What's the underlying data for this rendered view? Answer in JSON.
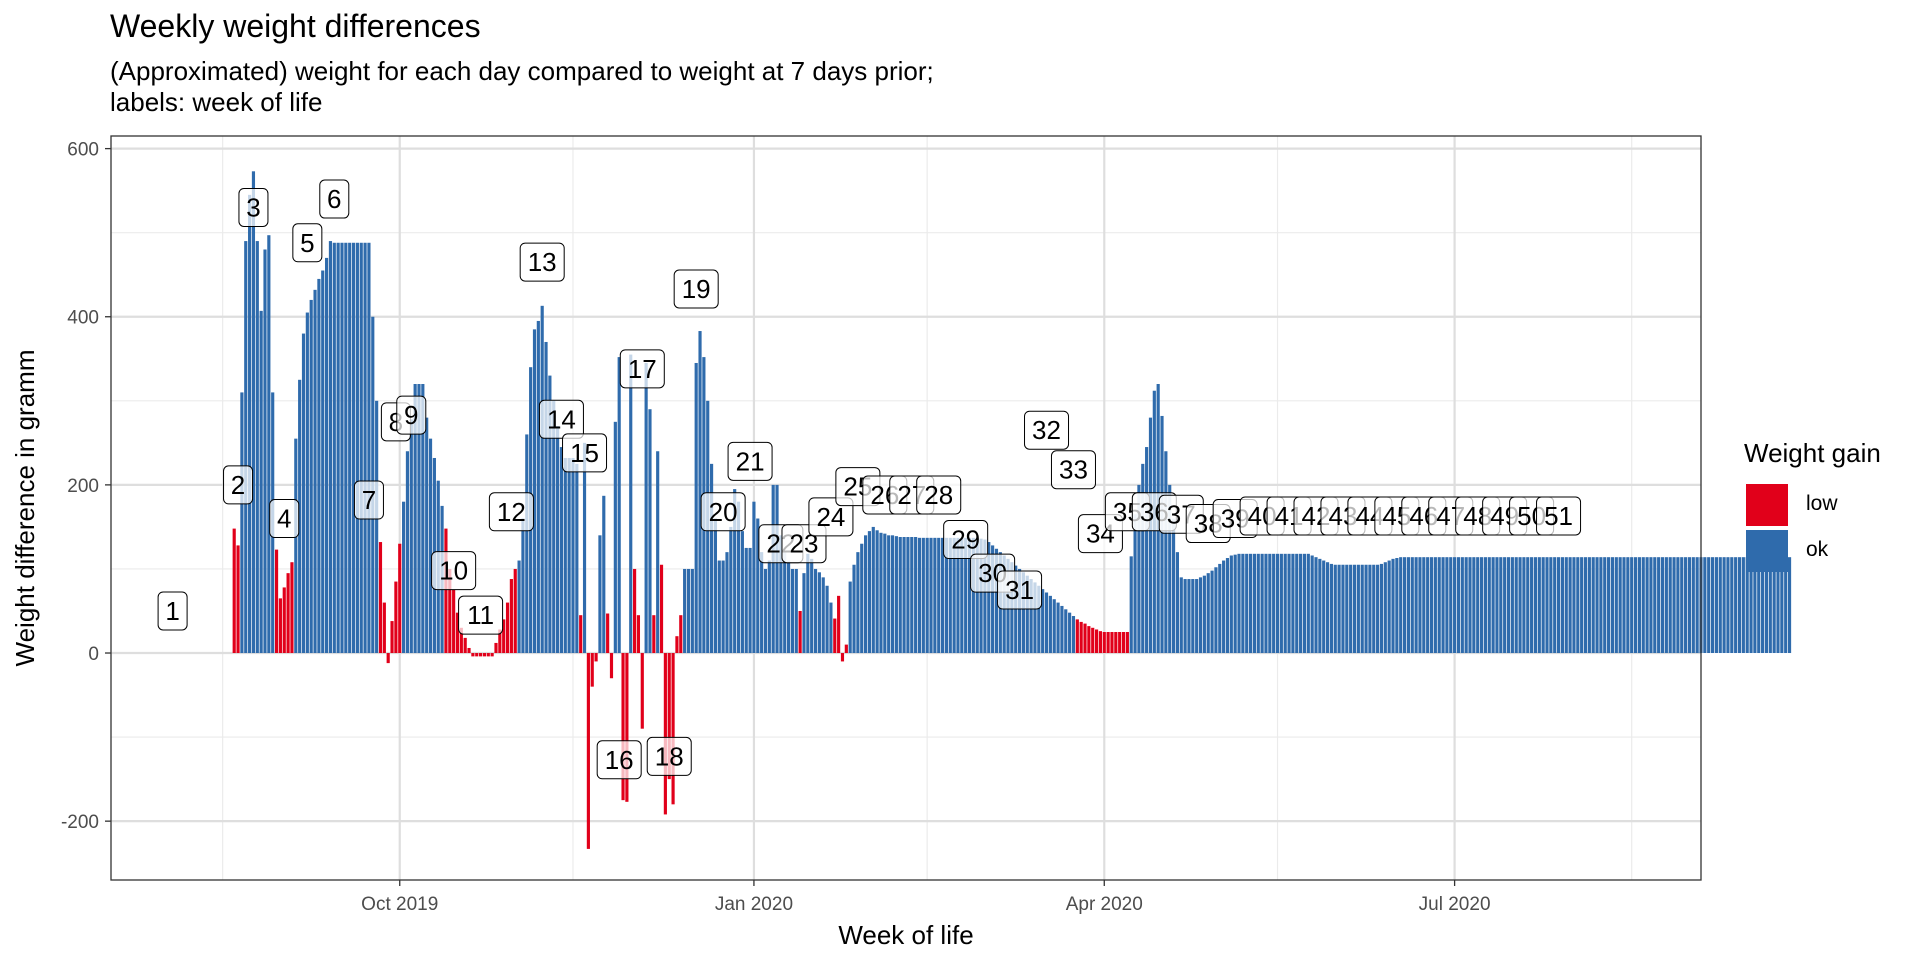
{
  "chart_data": {
    "type": "bar",
    "title": "Weekly weight differences",
    "subtitle": "(Approximated) weight for each day compared to weight at 7 days prior;\nlabels: week of life",
    "xlabel": "Week of life",
    "ylabel": "Weight difference in gramm",
    "x_ticks": [
      {
        "label": "Oct 2019",
        "date": "2019-10-01"
      },
      {
        "label": "Jan 2020",
        "date": "2020-01-01"
      },
      {
        "label": "Apr 2020",
        "date": "2020-04-01"
      },
      {
        "label": "Jul 2020",
        "date": "2020-07-01"
      }
    ],
    "x_minor_dates": [
      "2019-08-16",
      "2019-11-15",
      "2020-02-15",
      "2020-05-16",
      "2020-08-16"
    ],
    "xlim": [
      "2019-07-18",
      "2020-09-03"
    ],
    "y_ticks": [
      -200,
      0,
      200,
      400,
      600
    ],
    "ylim": [
      -270,
      615
    ],
    "grid": true,
    "legend": {
      "title": "Weight gain",
      "position": "right",
      "entries": [
        {
          "name": "low",
          "color": "#E1001A"
        },
        {
          "name": "ok",
          "color": "#2F6BAC"
        }
      ]
    },
    "series": [
      {
        "name": "low",
        "color": "#E1001A"
      },
      {
        "name": "ok",
        "color": "#2F6BAC"
      }
    ],
    "segments": [
      {
        "start": "2019-08-19",
        "values": [
          148,
          128
        ],
        "group": "low"
      },
      {
        "start": "2019-08-21",
        "values": [
          310,
          490,
          545,
          573,
          490,
          407,
          480,
          497,
          310
        ],
        "group": "ok"
      },
      {
        "start": "2019-08-30",
        "values": [
          123,
          65,
          78,
          95,
          108
        ],
        "group": "low"
      },
      {
        "start": "2019-09-04",
        "values": [
          255,
          325,
          380,
          405,
          420,
          432,
          445,
          455,
          470,
          490,
          488,
          488,
          488,
          488,
          488,
          488,
          488,
          488,
          488,
          488,
          400,
          300
        ],
        "group": "ok"
      },
      {
        "start": "2019-09-26",
        "values": [
          132,
          60,
          -12,
          38,
          85,
          130
        ],
        "group": "low"
      },
      {
        "start": "2019-10-02",
        "values": [
          180,
          240,
          278,
          320,
          320,
          320,
          280,
          255,
          232,
          205,
          175
        ],
        "group": "ok"
      },
      {
        "start": "2019-10-13",
        "values": [
          148,
          100,
          75,
          48,
          30,
          18,
          6,
          -4,
          -4,
          -4,
          -4,
          -4,
          -4,
          12,
          28,
          40,
          60,
          88,
          100
        ],
        "group": "low"
      },
      {
        "start": "2019-11-01",
        "values": [
          110,
          160,
          260,
          340,
          385,
          395,
          413,
          370,
          330,
          300,
          270,
          245,
          232,
          232,
          232,
          225
        ],
        "group": "ok"
      },
      {
        "start": "2019-11-17",
        "values": [
          45
        ],
        "group": "low"
      },
      {
        "start": "2019-11-18",
        "values": [
          250
        ],
        "group": "ok"
      },
      {
        "start": "2019-11-19",
        "values": [
          -233,
          -40,
          -10
        ],
        "group": "low"
      },
      {
        "start": "2019-11-22",
        "values": [
          140,
          187
        ],
        "group": "ok"
      },
      {
        "start": "2019-11-24",
        "values": [
          47,
          -30
        ],
        "group": "low"
      },
      {
        "start": "2019-11-26",
        "values": [
          275,
          352
        ],
        "group": "ok"
      },
      {
        "start": "2019-11-28",
        "values": [
          -175,
          -177
        ],
        "group": "low"
      },
      {
        "start": "2019-11-30",
        "values": [
          355
        ],
        "group": "ok"
      },
      {
        "start": "2019-12-01",
        "values": [
          100,
          45,
          -90
        ],
        "group": "low"
      },
      {
        "start": "2019-12-04",
        "values": [
          345,
          290
        ],
        "group": "ok"
      },
      {
        "start": "2019-12-06",
        "values": [
          45
        ],
        "group": "low"
      },
      {
        "start": "2019-12-07",
        "values": [
          240
        ],
        "group": "ok"
      },
      {
        "start": "2019-12-08",
        "values": [
          105,
          -192,
          -150,
          -180,
          20,
          45
        ],
        "group": "low"
      },
      {
        "start": "2019-12-14",
        "values": [
          100,
          100,
          100,
          345,
          383,
          352,
          300,
          225,
          160,
          110,
          110,
          120,
          150,
          195,
          180,
          145,
          125,
          125,
          180,
          160,
          120,
          100,
          110,
          200,
          200,
          140,
          120,
          110,
          100,
          100
        ],
        "group": "ok"
      },
      {
        "start": "2020-01-13",
        "values": [
          50
        ],
        "group": "low"
      },
      {
        "start": "2020-01-14",
        "values": [
          95,
          118,
          112,
          100,
          96,
          90,
          80,
          60
        ],
        "group": "ok"
      },
      {
        "start": "2020-01-22",
        "values": [
          41,
          68,
          -10,
          10
        ],
        "group": "low"
      },
      {
        "start": "2020-01-26",
        "values": [
          85,
          105,
          120,
          130,
          140,
          145,
          150,
          146,
          143,
          142,
          140,
          140,
          139,
          138,
          138,
          138,
          138,
          138,
          137,
          137,
          137,
          137,
          137,
          137,
          137,
          137,
          137,
          137,
          137,
          137,
          137,
          137,
          137,
          137,
          136,
          135,
          132,
          128,
          124,
          120,
          116,
          112,
          108,
          104,
          100,
          96,
          92,
          88,
          84,
          80,
          76,
          72,
          68,
          64,
          60,
          56,
          52,
          48,
          44
        ],
        "group": "ok"
      },
      {
        "start": "2020-03-25",
        "values": [
          40,
          37,
          35,
          32,
          30,
          28,
          26,
          25,
          25,
          25,
          25,
          25,
          25,
          25
        ],
        "group": "low"
      },
      {
        "start": "2020-04-08",
        "values": [
          115,
          165,
          200,
          225,
          245,
          280,
          312,
          320,
          282,
          240,
          200,
          160,
          120,
          90,
          88,
          88,
          88,
          88,
          90,
          92,
          95,
          98,
          102,
          106,
          110,
          113,
          116,
          117,
          118,
          118,
          118,
          118,
          118,
          118,
          118,
          118,
          118,
          118,
          118,
          118,
          118,
          118,
          118,
          118,
          118,
          118,
          118,
          116,
          114,
          112,
          110,
          108,
          106,
          105,
          105,
          105,
          105,
          105,
          105,
          105,
          105,
          105,
          105,
          105,
          105,
          106,
          108,
          110,
          112,
          113,
          114,
          114,
          114,
          114,
          114,
          114,
          114,
          114,
          114,
          114,
          114,
          114,
          114,
          114,
          114,
          114,
          114,
          114,
          114,
          114,
          114,
          114,
          114,
          114,
          114,
          114,
          114,
          114,
          114,
          114,
          114,
          114,
          114,
          114,
          114,
          114,
          114,
          114,
          114,
          114,
          114,
          114,
          114,
          114,
          114,
          114,
          114,
          114,
          114,
          114,
          114,
          114,
          114,
          114,
          114,
          114,
          114,
          114,
          114,
          114,
          114,
          114,
          114,
          114,
          114,
          114,
          114,
          114,
          114,
          114,
          114,
          114,
          114,
          114,
          114,
          114,
          114,
          114,
          114,
          114,
          114,
          114,
          114,
          114,
          114,
          114,
          114,
          114,
          114,
          114,
          114,
          114,
          114,
          114,
          114,
          114,
          114,
          114,
          114,
          114,
          114,
          114
        ],
        "group": "ok"
      }
    ],
    "annotations": [
      {
        "text": "1",
        "date": "2019-08-03",
        "y": 50
      },
      {
        "text": "2",
        "date": "2019-08-20",
        "y": 200
      },
      {
        "text": "3",
        "date": "2019-08-24",
        "y": 530
      },
      {
        "text": "4",
        "date": "2019-09-01",
        "y": 160
      },
      {
        "text": "5",
        "date": "2019-09-07",
        "y": 488
      },
      {
        "text": "6",
        "date": "2019-09-14",
        "y": 540
      },
      {
        "text": "7",
        "date": "2019-09-23",
        "y": 182
      },
      {
        "text": "8",
        "date": "2019-09-30",
        "y": 275
      },
      {
        "text": "9",
        "date": "2019-10-04",
        "y": 283
      },
      {
        "text": "10",
        "date": "2019-10-15",
        "y": 98
      },
      {
        "text": "11",
        "date": "2019-10-22",
        "y": 45
      },
      {
        "text": "12",
        "date": "2019-10-30",
        "y": 168
      },
      {
        "text": "13",
        "date": "2019-11-07",
        "y": 465
      },
      {
        "text": "14",
        "date": "2019-11-12",
        "y": 278
      },
      {
        "text": "15",
        "date": "2019-11-18",
        "y": 238
      },
      {
        "text": "16",
        "date": "2019-11-27",
        "y": -127
      },
      {
        "text": "17",
        "date": "2019-12-03",
        "y": 338
      },
      {
        "text": "18",
        "date": "2019-12-10",
        "y": -123
      },
      {
        "text": "19",
        "date": "2019-12-17",
        "y": 433
      },
      {
        "text": "20",
        "date": "2019-12-24",
        "y": 168
      },
      {
        "text": "21",
        "date": "2019-12-31",
        "y": 228
      },
      {
        "text": "22",
        "date": "2020-01-08",
        "y": 130
      },
      {
        "text": "23",
        "date": "2020-01-14",
        "y": 130
      },
      {
        "text": "24",
        "date": "2020-01-21",
        "y": 162
      },
      {
        "text": "25",
        "date": "2020-01-28",
        "y": 198
      },
      {
        "text": "26",
        "date": "2020-02-04",
        "y": 188
      },
      {
        "text": "27",
        "date": "2020-02-11",
        "y": 188
      },
      {
        "text": "28",
        "date": "2020-02-18",
        "y": 188
      },
      {
        "text": "29",
        "date": "2020-02-25",
        "y": 135
      },
      {
        "text": "30",
        "date": "2020-03-03",
        "y": 95
      },
      {
        "text": "31",
        "date": "2020-03-10",
        "y": 75
      },
      {
        "text": "32",
        "date": "2020-03-17",
        "y": 265
      },
      {
        "text": "33",
        "date": "2020-03-24",
        "y": 218
      },
      {
        "text": "34",
        "date": "2020-03-31",
        "y": 142
      },
      {
        "text": "35",
        "date": "2020-04-07",
        "y": 168
      },
      {
        "text": "36",
        "date": "2020-04-14",
        "y": 168
      },
      {
        "text": "37",
        "date": "2020-04-21",
        "y": 165
      },
      {
        "text": "38",
        "date": "2020-04-28",
        "y": 154
      },
      {
        "text": "39",
        "date": "2020-05-05",
        "y": 160
      },
      {
        "text": "40",
        "date": "2020-05-12",
        "y": 163
      },
      {
        "text": "41",
        "date": "2020-05-19",
        "y": 163
      },
      {
        "text": "42",
        "date": "2020-05-26",
        "y": 163
      },
      {
        "text": "43",
        "date": "2020-06-02",
        "y": 163
      },
      {
        "text": "44",
        "date": "2020-06-09",
        "y": 163
      },
      {
        "text": "45",
        "date": "2020-06-16",
        "y": 163
      },
      {
        "text": "46",
        "date": "2020-06-23",
        "y": 163
      },
      {
        "text": "47",
        "date": "2020-06-30",
        "y": 163
      },
      {
        "text": "48",
        "date": "2020-07-07",
        "y": 163
      },
      {
        "text": "49",
        "date": "2020-07-14",
        "y": 163
      },
      {
        "text": "50",
        "date": "2020-07-21",
        "y": 163
      },
      {
        "text": "51",
        "date": "2020-07-28",
        "y": 163
      }
    ]
  }
}
